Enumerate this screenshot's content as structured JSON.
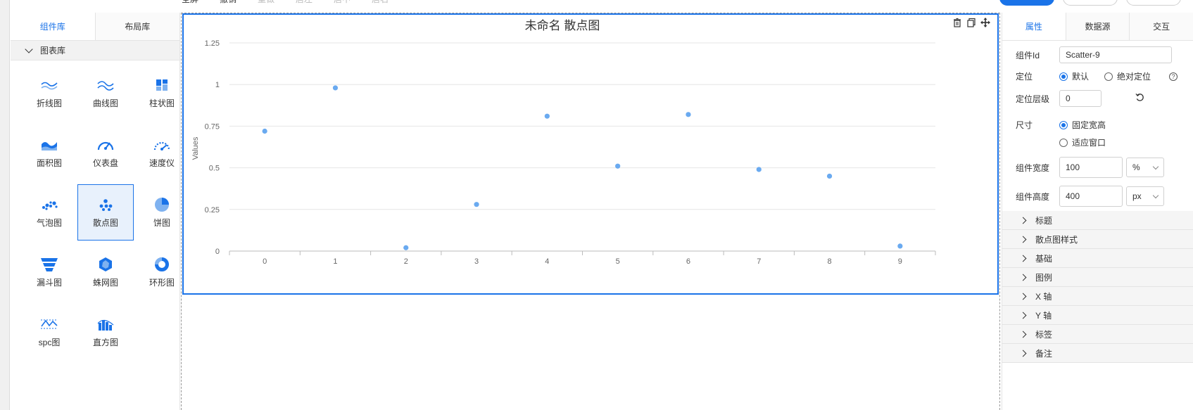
{
  "toolbar": {
    "items": [
      "全屏",
      "撤销",
      "重做",
      "居左",
      "居中",
      "居右"
    ]
  },
  "left_panel": {
    "tabs": [
      "组件库",
      "布局库"
    ],
    "section": "图表库",
    "items": [
      {
        "label": "折线图",
        "icon": "line-chart-icon"
      },
      {
        "label": "曲线图",
        "icon": "curve-chart-icon"
      },
      {
        "label": "柱状图",
        "icon": "bar-chart-icon"
      },
      {
        "label": "面积图",
        "icon": "area-chart-icon"
      },
      {
        "label": "仪表盘",
        "icon": "gauge-icon"
      },
      {
        "label": "速度仪",
        "icon": "speedometer-icon"
      },
      {
        "label": "气泡图",
        "icon": "bubble-chart-icon"
      },
      {
        "label": "散点图",
        "icon": "scatter-chart-icon"
      },
      {
        "label": "饼图",
        "icon": "pie-chart-icon"
      },
      {
        "label": "漏斗图",
        "icon": "funnel-chart-icon"
      },
      {
        "label": "蛛网图",
        "icon": "radar-chart-icon"
      },
      {
        "label": "环形图",
        "icon": "donut-chart-icon"
      },
      {
        "label": "spc图",
        "icon": "spc-chart-icon"
      },
      {
        "label": "直方图",
        "icon": "histogram-icon"
      }
    ],
    "selected_index": 7
  },
  "chart_data": {
    "type": "scatter",
    "title": "未命名 散点图",
    "xlabel": "",
    "ylabel": "Values",
    "categories": [
      "0",
      "1",
      "2",
      "3",
      "4",
      "5",
      "6",
      "7",
      "8",
      "9"
    ],
    "values": [
      0.72,
      0.98,
      0.02,
      0.28,
      0.81,
      0.51,
      0.82,
      0.49,
      0.45,
      0.03
    ],
    "yticks": [
      "0",
      "0.25",
      "0.5",
      "0.75",
      "1",
      "1.25"
    ],
    "ylim": [
      0,
      1.25
    ],
    "grid": true,
    "color": "#6aaaf0"
  },
  "right_panel": {
    "tabs": [
      "属性",
      "数据源",
      "交互"
    ],
    "component_id_label": "组件Id",
    "component_id_value": "Scatter-9",
    "position_label": "定位",
    "position_options": [
      "默认",
      "绝对定位"
    ],
    "zindex_label": "定位层级",
    "zindex_value": "0",
    "size_label": "尺寸",
    "size_options": [
      "固定宽高",
      "适应窗口"
    ],
    "width_label": "组件宽度",
    "width_value": "100",
    "width_unit": "%",
    "height_label": "组件高度",
    "height_value": "400",
    "height_unit": "px",
    "sections": [
      "标题",
      "散点图样式",
      "基础",
      "图例",
      "X 轴",
      "Y 轴",
      "标签",
      "备注"
    ]
  },
  "colors": {
    "accent": "#1a73e8",
    "point": "#6aaaf0"
  }
}
